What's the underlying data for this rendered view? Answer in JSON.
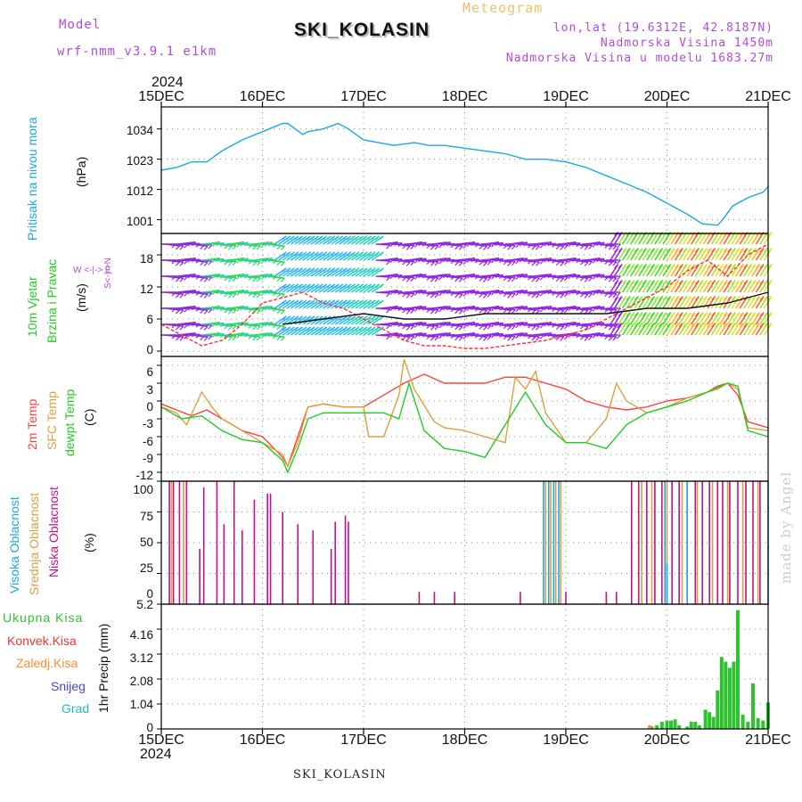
{
  "header": {
    "model_label": "Model",
    "model_name": "wrf-nmm_v3.9.1 e1km",
    "meteogram_label": "Meteogram",
    "station_title": "SKI_KOLASIN",
    "lonlat": "lon,lat (19.6312E, 42.8187N)",
    "altitude": "Nadmorska Visina 1450m",
    "model_altitude": "Nadmorska Visina u modelu 1683.27m"
  },
  "x_axis": {
    "year": "2024",
    "ticks": [
      "15DEC",
      "16DEC",
      "17DEC",
      "18DEC",
      "19DEC",
      "20DEC",
      "21DEC"
    ]
  },
  "footer": {
    "station": "SKI_KOLASIN",
    "watermark": "made by Angel"
  },
  "colors": {
    "pressure": "#1ca7e6",
    "wind_speed": "#ff3030",
    "gust": "#111111",
    "temp2m": "#ff4040",
    "sfc_temp": "#dba040",
    "dewpoint": "#22cc22",
    "cloud_high": "#1ca7e6",
    "cloud_mid": "#dba040",
    "cloud_low": "#c0108f",
    "precip_total": "#2ec22e",
    "precip_conv": "#ff3030",
    "precip_frz": "#ff8c30",
    "snow": "#4444dd",
    "hail": "#22bbbb",
    "wind_panel_label": "#b04dd6"
  },
  "panels": {
    "pressure": {
      "labels": [
        "Pritisak na nivou mora",
        "(hPa)"
      ],
      "yticks": [
        "1001",
        "1012",
        "1023",
        "1034"
      ]
    },
    "wind": {
      "labels": [
        "10m Vjetar",
        "Brzina i Pravac",
        "(m/s)"
      ],
      "compass": "W <-|-> E",
      "compass2": "S<-|->N",
      "yticks": [
        "0",
        "6",
        "12",
        "18"
      ]
    },
    "temp": {
      "labels": [
        "2m Temp",
        "SFC Temp",
        "dewpt Temp",
        "(C)"
      ],
      "yticks": [
        "-12",
        "-9",
        "-6",
        "-3",
        "0",
        "3",
        "6"
      ]
    },
    "cloud": {
      "labels": [
        "Visoka Oblacnost",
        "Srednja Oblacnost",
        "Niska Oblacnost",
        "(%)"
      ],
      "yticks": [
        "0",
        "25",
        "50",
        "75",
        "100"
      ]
    },
    "precip": {
      "labels": [
        "Ukupna Kisa",
        "Konvek.Kisa",
        "Zaledj.Kisa",
        "Snijeg",
        "Grad"
      ],
      "ylabel": "1hr Precip (mm)",
      "yticks": [
        "0",
        "1.04",
        "2.08",
        "3.12",
        "4.16",
        "5.2"
      ]
    }
  },
  "chart_data": [
    {
      "type": "line",
      "panel": "pressure",
      "ylabel": "(hPa)",
      "x_unit": "days since 15DEC 00",
      "ylim": [
        996,
        1042
      ],
      "series": [
        {
          "name": "Pritisak na nivou mora",
          "x": [
            0,
            0.15,
            0.3,
            0.45,
            0.6,
            0.8,
            1.0,
            1.2,
            1.25,
            1.4,
            1.45,
            1.6,
            1.75,
            1.85,
            2.0,
            2.15,
            2.3,
            2.5,
            2.65,
            2.8,
            3.0,
            3.2,
            3.4,
            3.6,
            3.8,
            4.0,
            4.2,
            4.4,
            4.6,
            4.8,
            5.0,
            5.2,
            5.35,
            5.5,
            5.55,
            5.65,
            5.8,
            5.95,
            6.0
          ],
          "values": [
            1019,
            1020,
            1022,
            1022,
            1026,
            1030,
            1033,
            1036,
            1036,
            1032,
            1033,
            1034,
            1036,
            1034,
            1030,
            1029,
            1028,
            1029,
            1028,
            1028,
            1027,
            1026,
            1025,
            1023,
            1023,
            1022,
            1020,
            1017,
            1014,
            1011,
            1007,
            1003,
            999.5,
            999,
            1001,
            1006,
            1009,
            1011,
            1013
          ]
        }
      ]
    },
    {
      "type": "line",
      "panel": "wind",
      "ylabel": "(m/s)",
      "ylim": [
        -1,
        22
      ],
      "series": [
        {
          "name": "Brzina",
          "x": [
            0,
            0.2,
            0.4,
            0.6,
            0.8,
            1.0,
            1.2,
            1.4,
            1.6,
            1.8,
            2.0,
            2.2,
            2.4,
            2.6,
            2.8,
            3.0,
            3.2,
            3.4,
            3.6,
            3.8,
            4.0,
            4.2,
            4.4,
            4.6,
            4.8,
            5.0,
            5.2,
            5.4,
            5.6,
            5.8,
            6.0
          ],
          "values": [
            5,
            3,
            1,
            2,
            5,
            9,
            10,
            11,
            9,
            8,
            6,
            4,
            2,
            1,
            1,
            0.5,
            0.5,
            1,
            1.5,
            2,
            3,
            4,
            6,
            8,
            10,
            12,
            15,
            17,
            14,
            18,
            20
          ]
        },
        {
          "name": "Udar",
          "x": [
            1.2,
            1.6,
            2.0,
            2.4,
            2.8,
            3.2,
            3.6,
            4.0,
            4.4,
            4.8,
            5.2,
            5.6,
            5.8,
            6.0
          ],
          "values": [
            5,
            6,
            7,
            6,
            6,
            7,
            7,
            7,
            7,
            8,
            8,
            9,
            10,
            11
          ]
        }
      ]
    },
    {
      "type": "line",
      "panel": "temp",
      "ylabel": "(C)",
      "ylim": [
        -13.5,
        7.5
      ],
      "series": [
        {
          "name": "2m Temp",
          "x": [
            0,
            0.15,
            0.3,
            0.45,
            0.6,
            0.8,
            1.0,
            1.2,
            1.25,
            1.35,
            1.45,
            1.6,
            1.8,
            2.0,
            2.2,
            2.4,
            2.6,
            2.8,
            3.0,
            3.2,
            3.4,
            3.6,
            3.8,
            4.0,
            4.2,
            4.4,
            4.6,
            4.8,
            5.0,
            5.2,
            5.4,
            5.5,
            5.6,
            5.7,
            5.8,
            6.0
          ],
          "values": [
            -0.5,
            -1.5,
            -2.5,
            -1.5,
            -3,
            -5,
            -6,
            -9.5,
            -11,
            -6,
            -1,
            -0.5,
            -1,
            -1,
            1,
            3,
            4.5,
            3,
            3,
            3,
            4,
            4,
            3,
            2,
            0,
            -1,
            -1.5,
            -1,
            0,
            0.5,
            1.5,
            2.5,
            3,
            1,
            -3.5,
            -4.5
          ]
        },
        {
          "name": "SFC Temp",
          "x": [
            0,
            0.15,
            0.25,
            0.4,
            0.5,
            0.6,
            0.8,
            1.0,
            1.2,
            1.25,
            1.35,
            1.45,
            1.6,
            1.8,
            2.0,
            2.05,
            2.2,
            2.35,
            2.4,
            2.5,
            2.7,
            2.8,
            3.0,
            3.2,
            3.4,
            3.5,
            3.6,
            3.7,
            3.8,
            4.0,
            4.2,
            4.4,
            4.5,
            4.6,
            4.8,
            5.0,
            5.2,
            5.4,
            5.5,
            5.6,
            5.7,
            5.8,
            6.0
          ],
          "values": [
            -1,
            -2,
            -4,
            1.5,
            -1,
            -3,
            -5,
            -7,
            -9,
            -11,
            -7,
            -1,
            -0.5,
            -1,
            -1,
            -6,
            -6,
            1,
            7,
            2,
            -3.5,
            -4.5,
            -5,
            -6,
            -7,
            4,
            2,
            5,
            -2,
            -7,
            -7,
            -3,
            3,
            0,
            -2,
            -1,
            0.5,
            1.5,
            2,
            3,
            2,
            -4.5,
            -5
          ]
        },
        {
          "name": "dewpt Temp",
          "x": [
            0,
            0.2,
            0.4,
            0.6,
            0.8,
            1.0,
            1.2,
            1.25,
            1.35,
            1.45,
            1.6,
            1.8,
            2.0,
            2.2,
            2.35,
            2.45,
            2.6,
            2.8,
            3.0,
            3.2,
            3.4,
            3.6,
            3.8,
            4.0,
            4.2,
            4.4,
            4.6,
            4.8,
            5.0,
            5.2,
            5.4,
            5.6,
            5.7,
            5.8,
            6.0
          ],
          "values": [
            -1,
            -3,
            -2.5,
            -5,
            -6.5,
            -7,
            -10,
            -12,
            -8,
            -3,
            -2,
            -2,
            -2,
            -2,
            -3,
            3,
            -5,
            -8,
            -8.5,
            -9.5,
            -4,
            1.5,
            -4,
            -7,
            -7,
            -8,
            -4,
            -2,
            -1,
            0,
            1.5,
            3,
            2.5,
            -5,
            -6
          ]
        }
      ]
    },
    {
      "type": "bar",
      "panel": "cloud",
      "ylabel": "(%)",
      "ylim": [
        0,
        100
      ],
      "series": [
        {
          "name": "Niska Oblacnost",
          "x": [
            0.08,
            0.12,
            0.18,
            0.25,
            0.38,
            0.42,
            0.55,
            0.62,
            0.72,
            0.8,
            0.92,
            1.05,
            1.08,
            1.2,
            1.35,
            1.5,
            1.68,
            1.72,
            1.82,
            1.85,
            2.55,
            2.7,
            2.9,
            3.55,
            4.0,
            4.4,
            4.5,
            4.65,
            4.72,
            4.8,
            4.88,
            4.95,
            5.05,
            5.12,
            5.2,
            5.28,
            5.35,
            5.42,
            5.5,
            5.55,
            5.62,
            5.7,
            5.78,
            5.85,
            5.92
          ],
          "values": [
            100,
            100,
            100,
            100,
            45,
            95,
            100,
            65,
            100,
            60,
            85,
            90,
            90,
            75,
            65,
            60,
            45,
            67,
            72,
            67,
            10,
            10,
            10,
            10,
            10,
            10,
            10,
            100,
            100,
            100,
            100,
            100,
            100,
            100,
            100,
            100,
            100,
            100,
            100,
            100,
            100,
            100,
            100,
            100,
            100
          ]
        },
        {
          "name": "Srednja Oblacnost",
          "x": [
            0.1,
            0.22,
            3.8,
            3.85,
            3.9,
            3.95,
            4.75,
            4.85,
            5.0,
            5.15,
            5.3,
            5.45,
            5.6,
            5.75,
            5.9
          ],
          "values": [
            100,
            100,
            100,
            100,
            100,
            100,
            100,
            100,
            100,
            100,
            100,
            100,
            100,
            100,
            100
          ]
        },
        {
          "name": "Visoka Oblacnost",
          "x": [
            3.78,
            3.83,
            3.88,
            3.93,
            4.98,
            5.0,
            5.2,
            6.0
          ],
          "values": [
            100,
            100,
            100,
            100,
            100,
            33,
            100,
            100
          ]
        }
      ]
    },
    {
      "type": "bar",
      "panel": "precip",
      "ylabel": "1hr Precip (mm)",
      "ylim": [
        0,
        5.2
      ],
      "series": [
        {
          "name": "Ukupna Kisa",
          "x": [
            4.85,
            4.9,
            4.95,
            5.0,
            5.04,
            5.08,
            5.12,
            5.2,
            5.24,
            5.28,
            5.32,
            5.38,
            5.42,
            5.46,
            5.5,
            5.54,
            5.58,
            5.62,
            5.66,
            5.7,
            5.75,
            5.8,
            5.85,
            5.9,
            5.95,
            6.0
          ],
          "values": [
            0.1,
            0.15,
            0.3,
            0.35,
            0.35,
            0.4,
            0.15,
            0.1,
            0.3,
            0.3,
            0.15,
            0.8,
            0.7,
            0.5,
            1.6,
            3.0,
            2.8,
            2.55,
            2.8,
            4.95,
            0.6,
            0.3,
            1.9,
            0.45,
            0.35,
            1.1
          ]
        },
        {
          "name": "Zaledj.Kisa",
          "x": [
            4.83
          ],
          "values": [
            0.15
          ]
        }
      ]
    }
  ]
}
